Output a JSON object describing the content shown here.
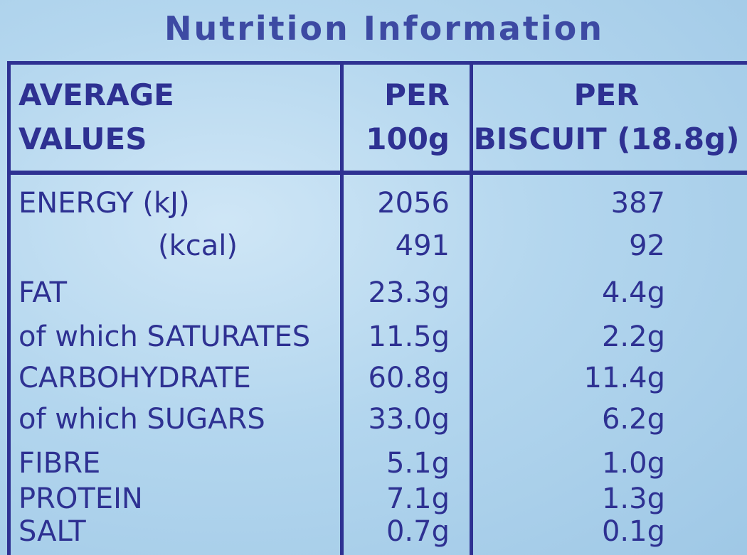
{
  "title": "Nutrition Information",
  "table": {
    "header": [
      [
        "AVERAGE",
        "VALUES"
      ],
      [
        "PER",
        "100g"
      ],
      [
        "PER",
        "BISCUIT (18.8g)"
      ]
    ],
    "rows": [
      [
        "ENERGY (kJ)",
        "2056",
        "387"
      ],
      [
        "(kcal)",
        "491",
        "92"
      ],
      [
        "FAT",
        "23.3g",
        "4.4g"
      ],
      [
        "of which SATURATES",
        "11.5g",
        "2.2g"
      ],
      [
        "CARBOHYDRATE",
        "60.8g",
        "11.4g"
      ],
      [
        "of which SUGARS",
        "33.0g",
        "6.2g"
      ],
      [
        "FIBRE",
        "5.1g",
        "1.0g"
      ],
      [
        "PROTEIN",
        "7.1g",
        "1.3g"
      ],
      [
        "SALT",
        "0.7g",
        "0.1g"
      ]
    ]
  }
}
